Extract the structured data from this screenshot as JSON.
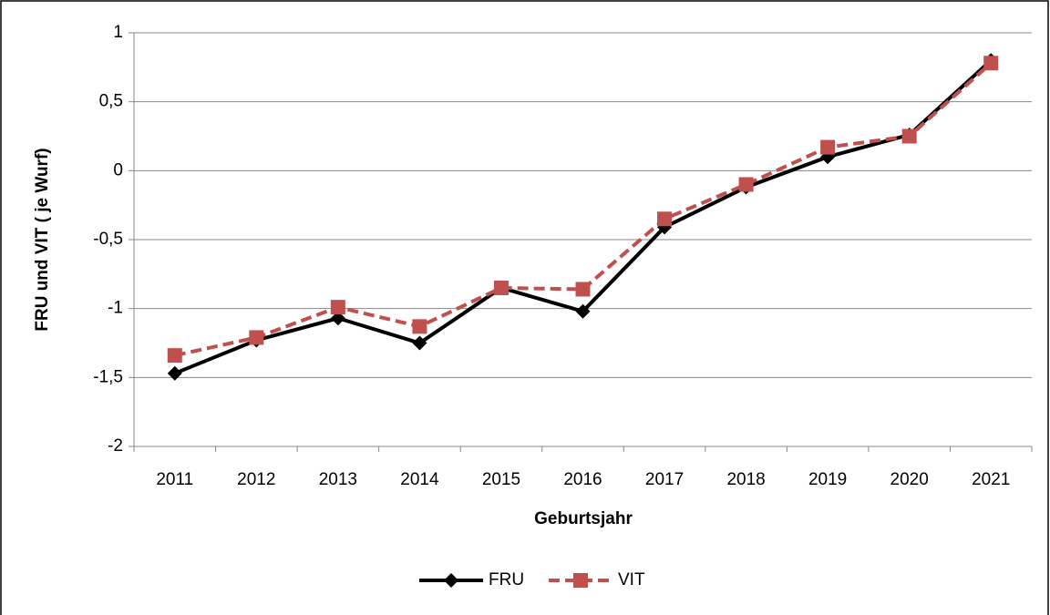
{
  "chart_data": {
    "type": "line",
    "x_label": "Geburtsjahr",
    "y_label": "FRU und  VIT  ( je Wurf)",
    "categories": [
      "2011",
      "2012",
      "2013",
      "2014",
      "2015",
      "2016",
      "2017",
      "2018",
      "2019",
      "2020",
      "2021"
    ],
    "series": [
      {
        "name": "FRU",
        "color": "#000000",
        "marker": "diamond",
        "dashed": false,
        "values": [
          -1.47,
          -1.23,
          -1.07,
          -1.25,
          -0.85,
          -1.02,
          -0.41,
          -0.12,
          0.1,
          0.26,
          0.8
        ]
      },
      {
        "name": "VIT",
        "color": "#c0504d",
        "marker": "square",
        "dashed": true,
        "values": [
          -1.34,
          -1.21,
          -0.99,
          -1.13,
          -0.85,
          -0.86,
          -0.35,
          -0.1,
          0.17,
          0.25,
          0.78
        ]
      }
    ],
    "ylim": [
      -2,
      1
    ],
    "yticks": [
      -2,
      {
        "value": -1.5,
        "label": "-1,5"
      },
      -1,
      {
        "value": -0.5,
        "label": "-0,5"
      },
      0,
      {
        "value": 0.5,
        "label": "0,5"
      },
      1
    ],
    "grid": true,
    "legend": "bottom"
  }
}
